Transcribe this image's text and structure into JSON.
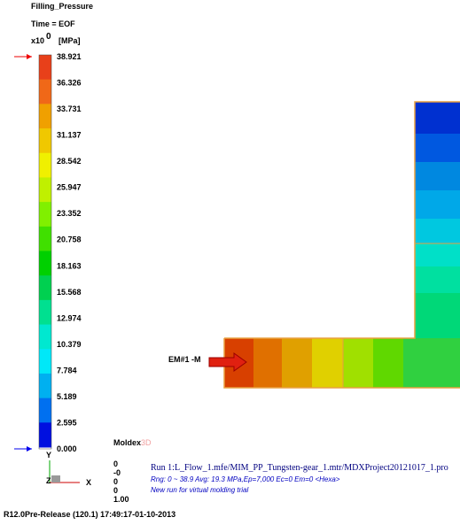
{
  "header": {
    "title": "Filling_Pressure",
    "time": "Time = EOF",
    "scale": "x10",
    "exponent": "0",
    "unit": "[MPa]"
  },
  "legend": {
    "labels": [
      "38.921",
      "36.326",
      "33.731",
      "31.137",
      "28.542",
      "25.947",
      "23.352",
      "20.758",
      "18.163",
      "15.568",
      "12.974",
      "10.379",
      "7.784",
      "5.189",
      "2.595",
      "0.000"
    ]
  },
  "axes": {
    "y": "Y",
    "z": "Z",
    "x": "X"
  },
  "brand": {
    "name": "Moldex",
    "suffix": "3D"
  },
  "info": {
    "numbers": [
      "0",
      "-0",
      "0",
      "0",
      "1.00"
    ],
    "run": "Run 1:L_Flow_1.mfe/MIM_PP_Tungsten-gear_1.mtr/MDXProject20121017_1.pro",
    "range": "Rng: 0 ~ 38.9   Avg: 19.3 MPa,Ep=7,000 Ec=0 Em=0  <Hexa>",
    "note": "New run for virtual molding trial"
  },
  "model": {
    "inlet": "EM#1 -M"
  },
  "footer": {
    "version": "R12.0Pre-Release (120.1) 17:49:17-01-10-2013"
  }
}
